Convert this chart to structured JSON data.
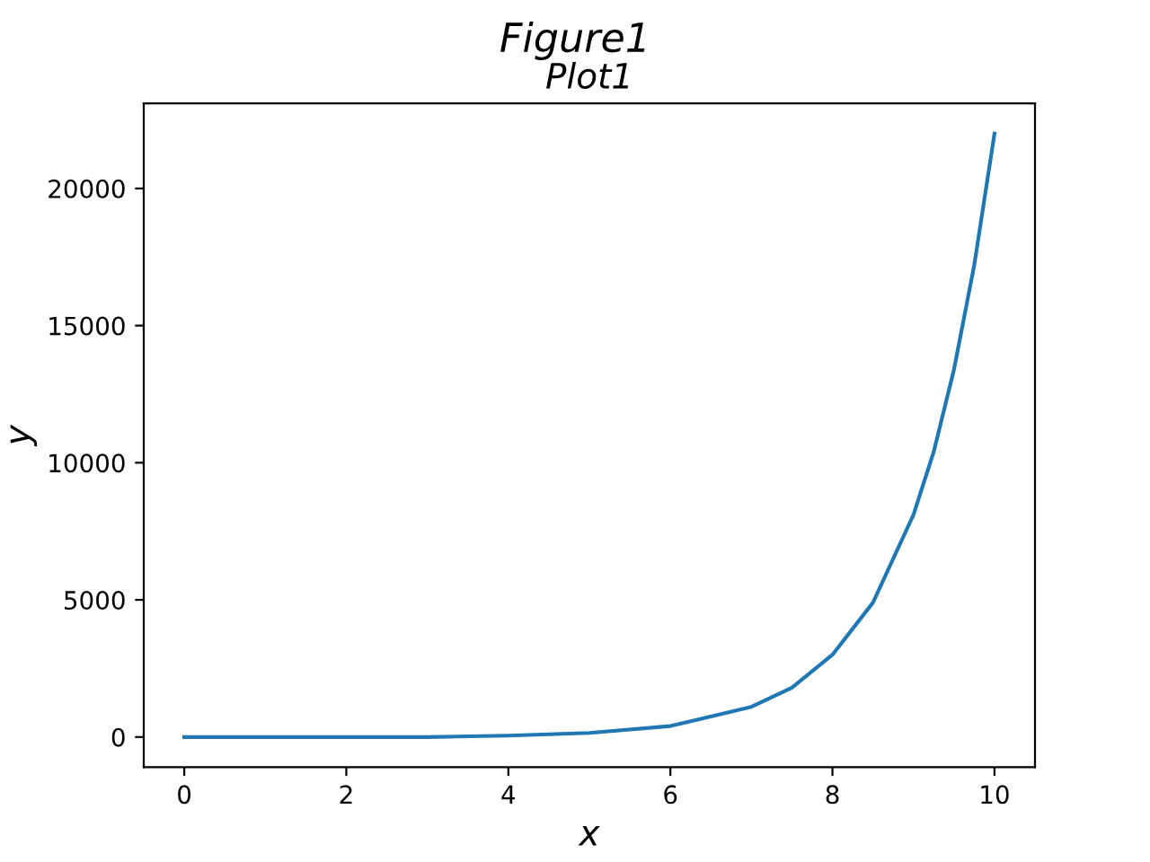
{
  "chart_data": {
    "type": "line",
    "title": "Figure1",
    "subtitle": "Plot1",
    "xlabel": "x",
    "ylabel": "y",
    "x": [
      0,
      1,
      2,
      3,
      4,
      5,
      6,
      7,
      7.5,
      8,
      8.5,
      9,
      9.25,
      9.5,
      9.75,
      10
    ],
    "series": [
      {
        "color": "#1f77b4",
        "values": [
          0,
          0,
          0,
          0,
          50,
          150,
          400,
          1100,
          1800,
          3000,
          4900,
          8100,
          10400,
          13400,
          17200,
          22000
        ]
      }
    ],
    "xlim": [
      -0.5,
      10.5
    ],
    "xticks": [
      0,
      2,
      4,
      6,
      8,
      10
    ],
    "ylim": [
      -1100,
      23100
    ],
    "yticks": [
      0,
      5000,
      10000,
      15000,
      20000
    ],
    "grid": false,
    "legend": false,
    "marker": "none",
    "line_style": "solid"
  }
}
